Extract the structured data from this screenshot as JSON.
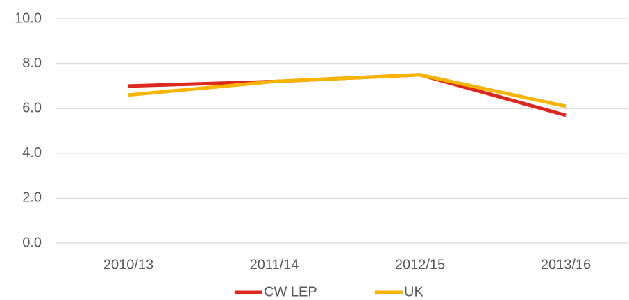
{
  "chart_data": {
    "type": "line",
    "categories": [
      "2010/13",
      "2011/14",
      "2012/15",
      "2013/16"
    ],
    "series": [
      {
        "name": "CW LEP",
        "color": "#dc281e",
        "values": [
          7.0,
          7.2,
          7.5,
          5.7
        ]
      },
      {
        "name": "UK",
        "color": "#f8b500",
        "values": [
          6.6,
          7.2,
          7.5,
          6.1
        ]
      }
    ],
    "ylim": [
      0,
      10
    ],
    "yticks": [
      {
        "value": 0,
        "label": "0.0"
      },
      {
        "value": 2,
        "label": "2.0"
      },
      {
        "value": 4,
        "label": "4.0"
      },
      {
        "value": 6,
        "label": "6.0"
      },
      {
        "value": 8,
        "label": "8.0"
      },
      {
        "value": 10,
        "label": "10.0"
      }
    ],
    "grid": true,
    "legend": "bottom"
  }
}
